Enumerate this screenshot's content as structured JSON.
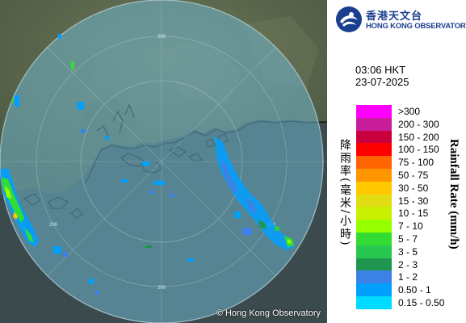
{
  "branding": {
    "name_cn": "香港天文台",
    "name_en": "HONG KONG OBSERVATORY",
    "copyright": "© Hong Kong Observatory"
  },
  "observation": {
    "time": "03:06 HKT",
    "date": "23-07-2025"
  },
  "radar": {
    "range_ring_label": "200",
    "colors": {
      "land": "#5f6b50",
      "sea": "#3b4a4c",
      "coverage": "#6fb4cc",
      "coastline": "#111111"
    }
  },
  "legend": {
    "title_cn": "降雨率(毫米/小時)",
    "title_en": "Rainfall Rate (mm/h)",
    "items": [
      {
        "label": ">300",
        "color": "#ff00ff"
      },
      {
        "label": "200 - 300",
        "color": "#c81e9b"
      },
      {
        "label": "150 - 200",
        "color": "#c8003c"
      },
      {
        "label": "100 - 150",
        "color": "#ff0000"
      },
      {
        "label": "75 - 100",
        "color": "#ff6400"
      },
      {
        "label": "50 - 75",
        "color": "#ff9600"
      },
      {
        "label": "30 - 50",
        "color": "#ffc800"
      },
      {
        "label": "15 - 30",
        "color": "#e1dc14"
      },
      {
        "label": "10 - 15",
        "color": "#c8f000"
      },
      {
        "label": "7 - 10",
        "color": "#96ff00"
      },
      {
        "label": "5 - 7",
        "color": "#32dc32"
      },
      {
        "label": "3 - 5",
        "color": "#28c850"
      },
      {
        "label": "2 - 3",
        "color": "#1e9650"
      },
      {
        "label": "1 - 2",
        "color": "#3c82e6"
      },
      {
        "label": "0.50 - 1",
        "color": "#00a0ff"
      },
      {
        "label": "0.15 - 0.50",
        "color": "#00dcff"
      }
    ]
  }
}
